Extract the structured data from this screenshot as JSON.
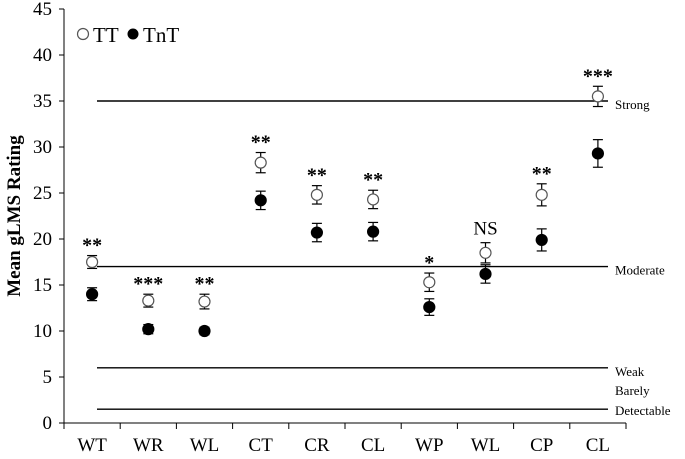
{
  "chart_data": {
    "type": "scatter",
    "ylabel": "Mean gLMS Rating",
    "xlabel": "",
    "ylim": [
      0,
      45
    ],
    "yticks": [
      0,
      5,
      10,
      15,
      20,
      25,
      30,
      35,
      40,
      45
    ],
    "grid": false,
    "legend_position": "top-left",
    "categories": [
      "WT",
      "WR",
      "WL",
      "CT",
      "CR",
      "CL",
      "WP",
      "WL",
      "CP",
      "CL"
    ],
    "series": [
      {
        "name": "TT",
        "marker": "open-circle",
        "values": [
          17.5,
          13.3,
          13.2,
          28.3,
          24.8,
          24.3,
          15.3,
          18.5,
          24.8,
          35.5
        ],
        "errors": [
          0.7,
          0.7,
          0.8,
          1.1,
          1.0,
          1.0,
          1.0,
          1.1,
          1.2,
          1.1
        ]
      },
      {
        "name": "TnT",
        "marker": "filled-circle",
        "values": [
          14.0,
          10.2,
          10.0,
          24.2,
          20.7,
          20.8,
          12.6,
          16.2,
          19.9,
          29.3
        ],
        "errors": [
          0.7,
          0.5,
          0.4,
          1.0,
          1.0,
          1.0,
          0.9,
          1.0,
          1.2,
          1.5
        ]
      }
    ],
    "significance": [
      "**",
      "***",
      "**",
      "**",
      "**",
      "**",
      "*",
      "NS",
      "**",
      "***"
    ],
    "reference_lines": [
      {
        "y": 35,
        "label": "Strong"
      },
      {
        "y": 17,
        "label": "Moderate"
      },
      {
        "y": 6,
        "label": "Weak"
      },
      {
        "y": 1.5,
        "label": "Barely",
        "label2": "Detectable"
      }
    ]
  }
}
